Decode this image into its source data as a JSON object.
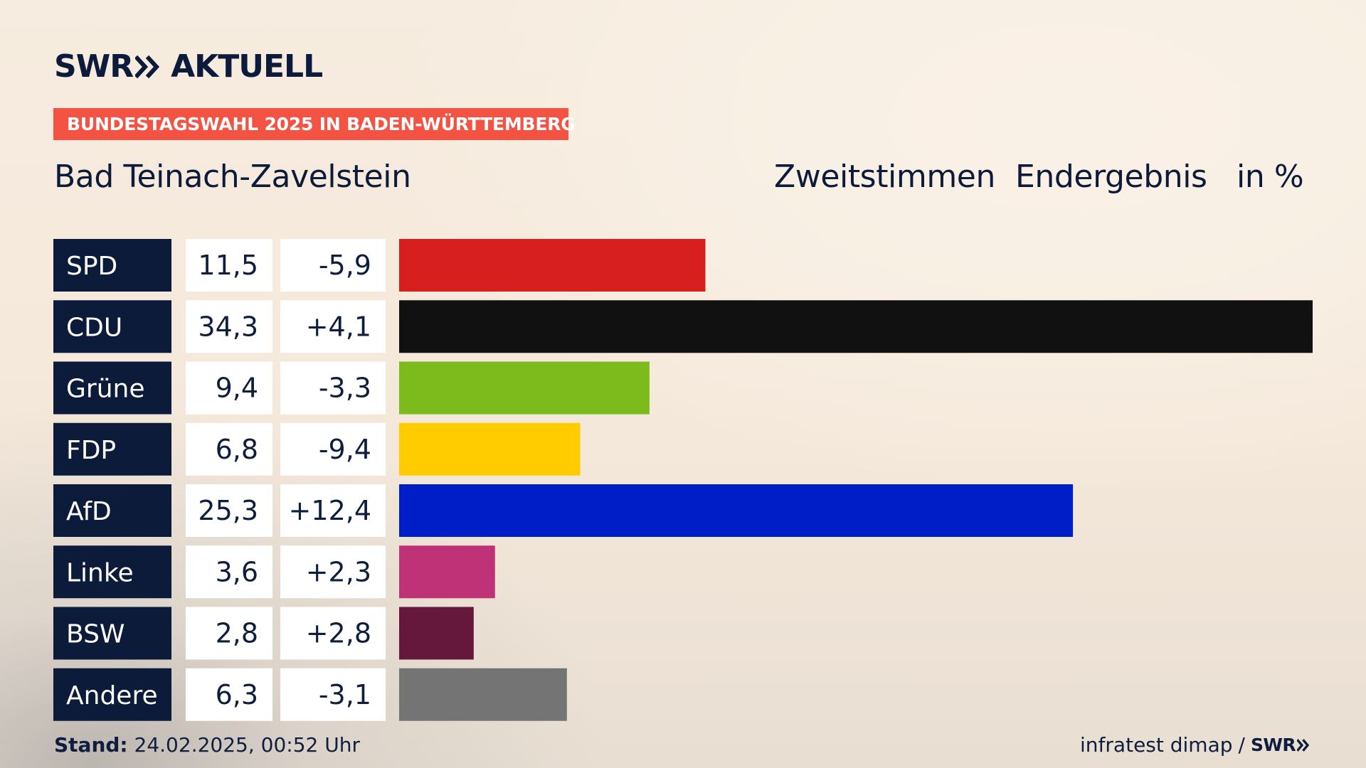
{
  "header": {
    "logo": {
      "left_text": "SWR",
      "right_text": "AKTUELL",
      "icon": "double-chevron-right-icon"
    },
    "subtitle": "BUNDESTAGSWAHL 2025 IN BADEN-WÜRTTEMBERG",
    "place": "Bad Teinach-Zavelstein",
    "vote_type": "Zweitstimmen",
    "status": "Endergebnis",
    "unit": "in %"
  },
  "colors": {
    "badge": "#f45243",
    "label_bg": "#0d1b3a",
    "cell_bg": "#ffffff",
    "text_dark": "#0d1b3a"
  },
  "chart_data": {
    "type": "bar",
    "orientation": "horizontal",
    "title": "Bad Teinach-Zavelstein",
    "subtitle": "BUNDESTAGSWAHL 2025 IN BADEN-WÜRTTEMBERG",
    "xlabel": "",
    "ylabel": "",
    "grid": false,
    "legend": "none",
    "categories": [
      "SPD",
      "CDU",
      "Grüne",
      "FDP",
      "AfD",
      "Linke",
      "BSW",
      "Andere"
    ],
    "value_labels": [
      "11,5",
      "34,3",
      "9,4",
      "6,8",
      "25,3",
      "3,6",
      "2,8",
      "6,3"
    ],
    "delta_labels": [
      "-5,9",
      "+4,1",
      "-3,3",
      "-9,4",
      "+12,4",
      "+2,3",
      "+2,8",
      "-3,1"
    ],
    "values": [
      11.5,
      34.3,
      9.4,
      6.8,
      25.3,
      3.6,
      2.8,
      6.3
    ],
    "deltas": [
      -5.9,
      4.1,
      -3.3,
      -9.4,
      12.4,
      2.3,
      2.8,
      -3.1
    ],
    "colors": [
      "#d71f1f",
      "#111111",
      "#7dbb1d",
      "#ffcc00",
      "#001ec8",
      "#bf3277",
      "#65173c",
      "#747474"
    ],
    "xlim": [
      0,
      34.3
    ]
  },
  "footer": {
    "stand_label": "Stand:",
    "stand_value": "24.02.2025, 00:52 Uhr",
    "source": "infratest dimap",
    "separator": "/",
    "brand": "SWR",
    "brand_icon": "double-chevron-right-icon"
  }
}
